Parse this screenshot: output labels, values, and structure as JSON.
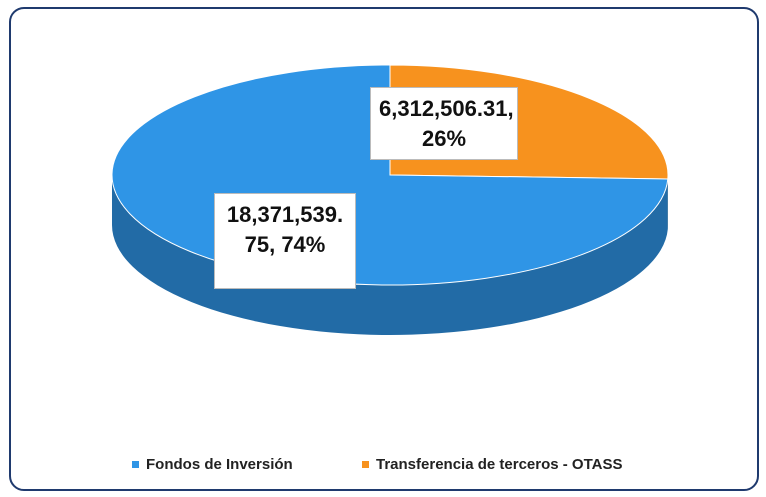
{
  "chart_data": {
    "type": "pie",
    "categories": [
      "Fondos de Inversión",
      "Transferencia de terceros - OTASS"
    ],
    "values": [
      18371539.75,
      6312506.31
    ],
    "value_labels": [
      "18,371,539.75, 74%",
      "6,312,506.31, 26%"
    ],
    "colors": [
      "#2f95e6",
      "#f7921e"
    ],
    "legend": "bottom"
  }
}
